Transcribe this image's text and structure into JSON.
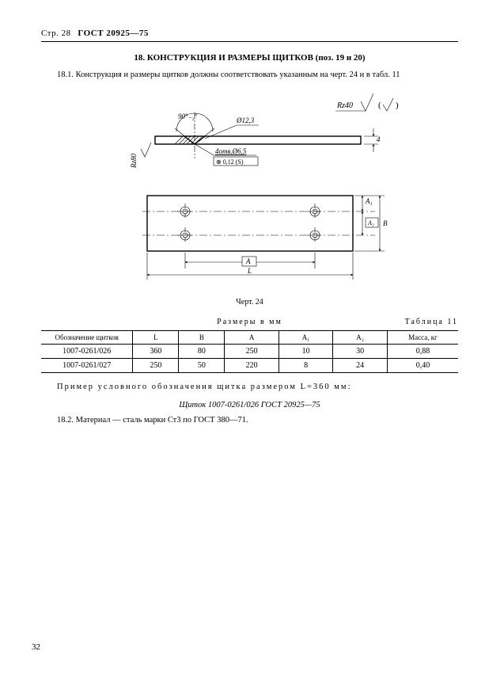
{
  "header": {
    "page_str": "Стр. 28",
    "gost": "ГОСТ 20925—75"
  },
  "section_title": "18. КОНСТРУКЦИЯ И РАЗМЕРЫ ЩИТКОВ (поз. 19 и 20)",
  "para_18_1": "18.1. Конструкция и размеры щитков должны соответствовать указанным на черт. 24 и в табл. 11",
  "drawing": {
    "rz40": "Rz40",
    "angle": "90°₋₂°",
    "d_csk": "Ø12,3",
    "four_holes": "4отв.Ø6,5",
    "tol_box": "⊕ 0,12 (S)",
    "rz80": "Rz80",
    "thickness": "4",
    "dim_A": "A",
    "dim_A1": "A₁",
    "dim_A2": "A₂",
    "dim_B": "B",
    "dim_L": "L",
    "caption": "Черт. 24",
    "bg": "#ffffff",
    "stroke": "#000000",
    "thin": 0.6,
    "thick": 1.4
  },
  "table": {
    "caption_dim": "Размеры в мм",
    "caption_no": "Таблица 11",
    "columns": [
      "Обозначение щитков",
      "L",
      "B",
      "A",
      "A₁",
      "A₂",
      "Масса, кг"
    ],
    "col_widths_pct": [
      22,
      11,
      11,
      13,
      13,
      13,
      17
    ],
    "rows": [
      [
        "1007-0261/026",
        "360",
        "80",
        "250",
        "10",
        "30",
        "0,88"
      ],
      [
        "1007-0261/027",
        "250",
        "50",
        "220",
        "8",
        "24",
        "0,40"
      ]
    ]
  },
  "example_line1": "Пример условного обозначения щитка размером L=360 мм:",
  "example_line2": "Щиток 1007-0261/026 ГОСТ 20925—75",
  "para_18_2": "18.2. Материал — сталь марки Ст3 по ГОСТ 380—71.",
  "footer_page": "32"
}
